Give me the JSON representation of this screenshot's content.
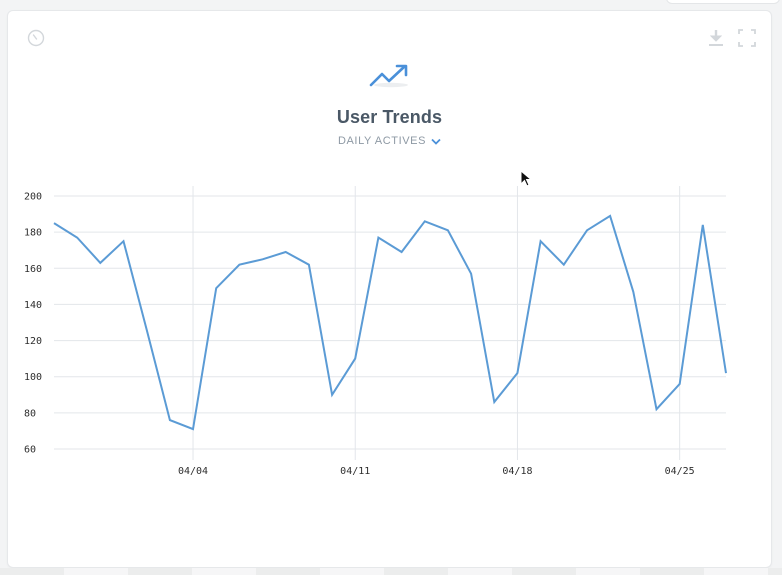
{
  "card": {
    "icons": {
      "history": "clock-icon",
      "download": "download-icon",
      "fullscreen": "expand-icon"
    },
    "header_icon": "trending-up-icon",
    "title": "User Trends",
    "metric_selector": {
      "label": "DAILY ACTIVES",
      "icon": "chevron-down-icon"
    }
  },
  "colors": {
    "line": "#5b9bd5",
    "accent": "#4a90d9",
    "title": "#4a5866",
    "muted": "#8e99a4",
    "grid": "#e3e6ea"
  },
  "chart_data": {
    "type": "line",
    "title": "User Trends",
    "subtitle": "DAILY ACTIVES",
    "xlabel": "",
    "ylabel": "",
    "ylim": [
      60,
      200
    ],
    "yticks": [
      200,
      180,
      160,
      140,
      120,
      100,
      80,
      60
    ],
    "xticks": [
      "04/04",
      "04/11",
      "04/18",
      "04/25"
    ],
    "grid": true,
    "legend": null,
    "x": [
      "03/29",
      "03/30",
      "03/31",
      "04/01",
      "04/02",
      "04/03",
      "04/04",
      "04/05",
      "04/06",
      "04/07",
      "04/08",
      "04/09",
      "04/10",
      "04/11",
      "04/12",
      "04/13",
      "04/14",
      "04/15",
      "04/16",
      "04/17",
      "04/18",
      "04/19",
      "04/20",
      "04/21",
      "04/22",
      "04/23",
      "04/24",
      "04/25",
      "04/26",
      "04/27"
    ],
    "series": [
      {
        "name": "Daily Actives",
        "values": [
          185,
          177,
          163,
          175,
          126,
          76,
          71,
          149,
          162,
          165,
          169,
          162,
          90,
          110,
          177,
          169,
          186,
          181,
          157,
          86,
          102,
          175,
          162,
          181,
          189,
          147,
          82,
          96,
          184,
          102
        ]
      }
    ]
  }
}
